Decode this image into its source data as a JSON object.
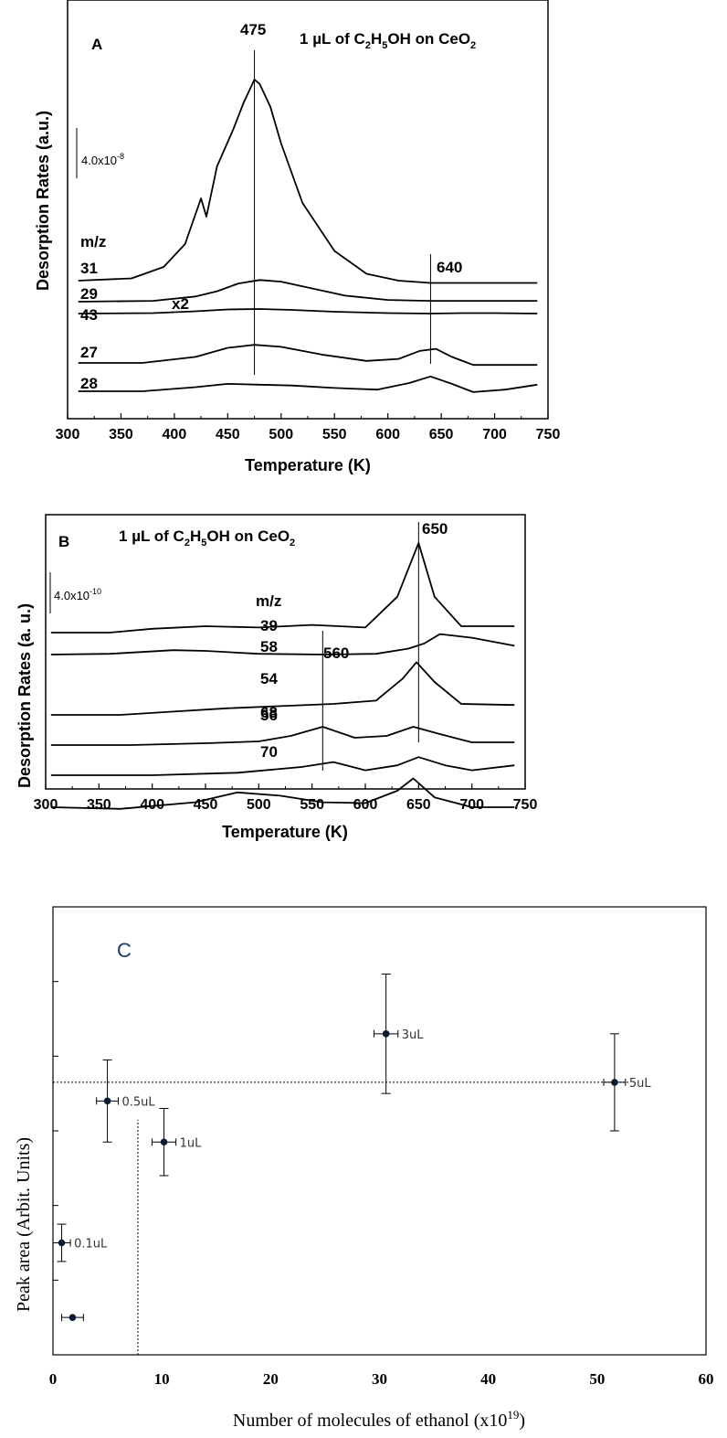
{
  "chart_data": [
    {
      "type": "line",
      "panel": "A",
      "title": "1 µL of C2H5OH on CeO2",
      "title_parts": {
        "pre": "1 ",
        "mu": "µ",
        "mid": "L of C",
        "sub1": "2",
        "mid2": "H",
        "sub2": "5",
        "post": "OH on CeO",
        "sub3": "2"
      },
      "xlabel": "Temperature (K)",
      "ylabel": "Desorption Rates (a.u.)",
      "xlim": [
        300,
        750
      ],
      "xticks": [
        300,
        350,
        400,
        450,
        500,
        550,
        600,
        650,
        700,
        750
      ],
      "scale_bar": "4.0x10",
      "scale_bar_exp": "-8",
      "legend_header": "m/z",
      "annotations": [
        "475",
        "640",
        "x2"
      ],
      "vlines": [
        475,
        640
      ],
      "series": [
        {
          "name": "31",
          "x": [
            310,
            360,
            390,
            410,
            425,
            430,
            440,
            455,
            465,
            475,
            480,
            490,
            500,
            520,
            550,
            580,
            610,
            640,
            680,
            740
          ],
          "y": [
            0.12,
            0.13,
            0.18,
            0.28,
            0.48,
            0.4,
            0.62,
            0.78,
            0.9,
            1.0,
            0.98,
            0.88,
            0.72,
            0.46,
            0.25,
            0.15,
            0.12,
            0.11,
            0.11,
            0.11
          ]
        },
        {
          "name": "29",
          "x": [
            310,
            380,
            420,
            440,
            460,
            480,
            500,
            530,
            560,
            600,
            640,
            700,
            740
          ],
          "y": [
            0.1,
            0.11,
            0.16,
            0.22,
            0.31,
            0.35,
            0.33,
            0.25,
            0.17,
            0.12,
            0.11,
            0.11,
            0.11
          ]
        },
        {
          "name": "43",
          "x": [
            310,
            380,
            420,
            450,
            480,
            510,
            550,
            600,
            640,
            670,
            700,
            740
          ],
          "y": [
            0.1,
            0.11,
            0.15,
            0.19,
            0.2,
            0.18,
            0.14,
            0.11,
            0.1,
            0.11,
            0.11,
            0.1
          ]
        },
        {
          "name": "27",
          "x": [
            310,
            370,
            420,
            450,
            475,
            500,
            540,
            580,
            610,
            630,
            645,
            660,
            680,
            740
          ],
          "y": [
            0.1,
            0.1,
            0.16,
            0.25,
            0.28,
            0.26,
            0.18,
            0.12,
            0.14,
            0.22,
            0.24,
            0.16,
            0.08,
            0.08
          ]
        },
        {
          "name": "28",
          "x": [
            310,
            370,
            420,
            450,
            480,
            510,
            550,
            590,
            620,
            640,
            660,
            680,
            710,
            740
          ],
          "y": [
            0.1,
            0.1,
            0.15,
            0.19,
            0.18,
            0.17,
            0.14,
            0.12,
            0.2,
            0.28,
            0.19,
            0.09,
            0.12,
            0.18
          ]
        }
      ]
    },
    {
      "type": "line",
      "panel": "B",
      "title": "1 µL of C2H5OH on CeO2",
      "title_parts": {
        "pre": "1 ",
        "mu": "µ",
        "mid": "L of C",
        "sub1": "2",
        "mid2": "H",
        "sub2": "5",
        "post": "OH on CeO",
        "sub3": "2"
      },
      "xlabel": "Temperature (K)",
      "ylabel": "Desorption Rates (a. u.)",
      "xlim": [
        300,
        750
      ],
      "xticks": [
        300,
        350,
        400,
        450,
        500,
        550,
        600,
        650,
        700,
        750
      ],
      "scale_bar": "4.0x10",
      "scale_bar_exp": "-10",
      "legend_header": "m/z",
      "annotations": [
        "650",
        "560"
      ],
      "vlines": [
        650,
        560
      ],
      "series": [
        {
          "name": "39",
          "x": [
            305,
            360,
            400,
            450,
            500,
            550,
            600,
            630,
            650,
            665,
            690,
            740
          ],
          "y": [
            0.12,
            0.12,
            0.15,
            0.17,
            0.16,
            0.18,
            0.16,
            0.4,
            0.82,
            0.4,
            0.17,
            0.17
          ]
        },
        {
          "name": "58",
          "x": [
            305,
            360,
            420,
            450,
            500,
            560,
            610,
            640,
            655,
            670,
            700,
            740
          ],
          "y": [
            0.12,
            0.13,
            0.18,
            0.17,
            0.13,
            0.12,
            0.13,
            0.2,
            0.27,
            0.4,
            0.35,
            0.24
          ]
        },
        {
          "name": "68",
          "x": [
            305,
            370,
            420,
            470,
            520,
            570,
            610,
            635,
            648,
            665,
            690,
            740
          ],
          "y": [
            0.12,
            0.12,
            0.15,
            0.18,
            0.2,
            0.22,
            0.25,
            0.45,
            0.6,
            0.42,
            0.22,
            0.21
          ]
        },
        {
          "name": "54",
          "x": [
            305,
            380,
            450,
            500,
            530,
            560,
            590,
            620,
            645,
            670,
            700,
            740
          ],
          "y": [
            0.1,
            0.1,
            0.12,
            0.14,
            0.2,
            0.3,
            0.18,
            0.2,
            0.3,
            0.22,
            0.13,
            0.13
          ]
        },
        {
          "name": "56",
          "x": [
            305,
            400,
            480,
            540,
            570,
            600,
            630,
            650,
            675,
            700,
            740
          ],
          "y": [
            0.1,
            0.1,
            0.13,
            0.2,
            0.26,
            0.16,
            0.22,
            0.32,
            0.22,
            0.16,
            0.22
          ]
        },
        {
          "name": "70",
          "x": [
            305,
            370,
            440,
            480,
            520,
            560,
            600,
            630,
            645,
            665,
            700,
            740
          ],
          "y": [
            0.1,
            0.08,
            0.16,
            0.28,
            0.24,
            0.16,
            0.15,
            0.3,
            0.45,
            0.22,
            0.1,
            0.1
          ]
        }
      ]
    },
    {
      "type": "scatter",
      "panel": "C",
      "panel_label": "C",
      "xlabel": "Number of molecules of ethanol (x10",
      "xlabel_exp": "19",
      "xlabel_post": ")",
      "ylabel": "Peak area (Arbit. Units)",
      "xlim": [
        0,
        60
      ],
      "ylim": [
        0,
        12
      ],
      "xticks": [
        0,
        10,
        20,
        30,
        40,
        50,
        60
      ],
      "points": [
        {
          "label": "",
          "x": 1.8,
          "y": 1.0,
          "xerr": 1.0,
          "yerr": 0.0
        },
        {
          "label": "0.1uL",
          "x": 0.8,
          "y": 3.0,
          "xerr": 0.8,
          "yerr": 0.5
        },
        {
          "label": "0.5uL",
          "x": 5.0,
          "y": 6.8,
          "xerr": 1.0,
          "yerr": 1.1
        },
        {
          "label": "1uL",
          "x": 10.2,
          "y": 5.7,
          "xerr": 1.1,
          "yerr": 0.9
        },
        {
          "label": "3uL",
          "x": 30.6,
          "y": 8.6,
          "xerr": 1.1,
          "yerr": 1.6
        },
        {
          "label": "5uL",
          "x": 51.6,
          "y": 7.3,
          "xerr": 1.0,
          "yerr": 1.3
        }
      ],
      "hline": {
        "y": 7.3,
        "x_from": 0,
        "x_to": 53
      },
      "vline": {
        "x": 7.8,
        "y_from": 0,
        "y_to": 6.3
      }
    }
  ]
}
